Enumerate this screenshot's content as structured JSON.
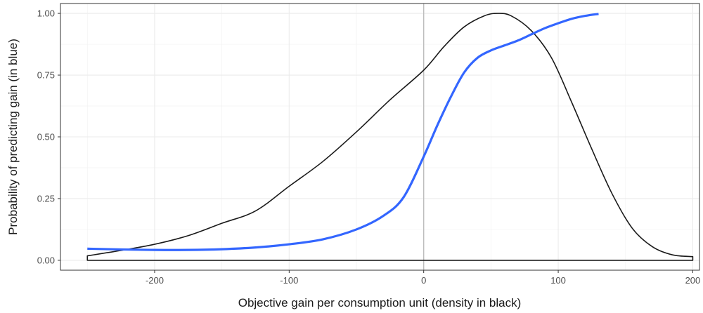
{
  "chart_data": {
    "type": "line",
    "xlabel": "Objective gain per consumption unit (density in black)",
    "ylabel": "Probability of predicting gain (in blue)",
    "xlim": [
      -270,
      205
    ],
    "ylim": [
      -0.04,
      1.04
    ],
    "x_ticks": [
      -200,
      -100,
      0,
      100,
      200
    ],
    "x_tick_labels": [
      "-200",
      "-100",
      "0",
      "100",
      "200"
    ],
    "y_ticks": [
      0,
      0.25,
      0.5,
      0.75,
      1.0
    ],
    "y_tick_labels": [
      "0.00",
      "0.25",
      "0.50",
      "0.75",
      "1.00"
    ],
    "grid": true,
    "vline_x": 0,
    "series": [
      {
        "color": "#3366ff",
        "x": [
          -250,
          -225,
          -200,
          -175,
          -150,
          -125,
          -100,
          -75,
          -50,
          -30,
          -15,
          0,
          10,
          20,
          30,
          40,
          50,
          60,
          70,
          80,
          90,
          100,
          110,
          120,
          130
        ],
        "y": [
          0.047,
          0.044,
          0.042,
          0.042,
          0.045,
          0.052,
          0.065,
          0.085,
          0.125,
          0.18,
          0.255,
          0.42,
          0.545,
          0.66,
          0.76,
          0.82,
          0.85,
          0.87,
          0.89,
          0.915,
          0.94,
          0.96,
          0.978,
          0.99,
          0.998
        ]
      },
      {
        "color": "#1a1a1a",
        "x": [
          -250,
          -225,
          -200,
          -175,
          -150,
          -125,
          -100,
          -75,
          -50,
          -25,
          0,
          15,
          30,
          45,
          55,
          65,
          80,
          95,
          110,
          125,
          140,
          155,
          170,
          185,
          200
        ],
        "y": [
          0.018,
          0.04,
          0.065,
          0.1,
          0.15,
          0.2,
          0.3,
          0.4,
          0.52,
          0.65,
          0.77,
          0.865,
          0.945,
          0.99,
          1.0,
          0.99,
          0.93,
          0.82,
          0.64,
          0.45,
          0.27,
          0.13,
          0.055,
          0.022,
          0.015
        ]
      }
    ]
  }
}
